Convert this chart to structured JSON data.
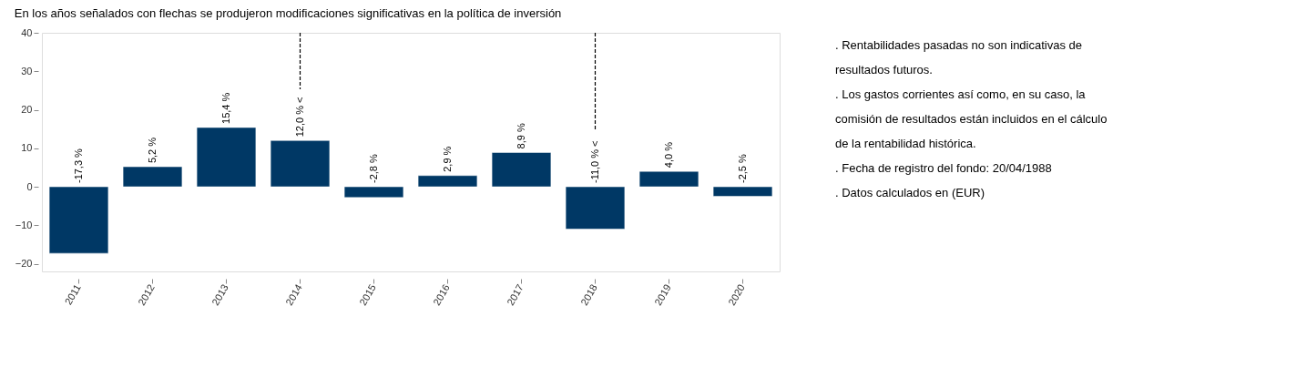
{
  "chart_data": {
    "type": "bar",
    "title": "En los años señalados con flechas se produjeron modificaciones significativas en la política de inversión",
    "categories": [
      "2011",
      "2012",
      "2013",
      "2014",
      "2015",
      "2016",
      "2017",
      "2018",
      "2019",
      "2020"
    ],
    "series": [
      {
        "color": "#003865",
        "values": [
          -17.3,
          5.2,
          15.4,
          12.0,
          -2.8,
          2.9,
          8.9,
          -11.0,
          4.0,
          -2.5
        ],
        "value_labels": [
          "-17,3 %",
          "5,2 %",
          "15,4 %",
          "12,0 % <",
          "-2,8 %",
          "2,9 %",
          "8,9 %",
          "-11,0 % <",
          "4,0 %",
          "-2,5 %"
        ]
      }
    ],
    "ylim": [
      -22,
      40
    ],
    "yticks": [
      -20,
      -10,
      0,
      10,
      20,
      30,
      40
    ],
    "grid": false,
    "ref_lines": [
      {
        "axis": "x",
        "value": "2014",
        "line_style": "dashed",
        "color": "#000000"
      },
      {
        "axis": "x",
        "value": "2018",
        "line_style": "dashed",
        "color": "#000000"
      }
    ],
    "annotations": [
      ". Rentabilidades pasadas no son indicativas de",
      "resultados futuros.",
      ". Los gastos corrientes así como, en su caso, la",
      "comisión de resultados están incluidos en el cálculo",
      "de la rentabilidad histórica.",
      ". Fecha de registro del fondo: 20/04/1988",
      ". Datos calculados en (EUR)"
    ]
  }
}
